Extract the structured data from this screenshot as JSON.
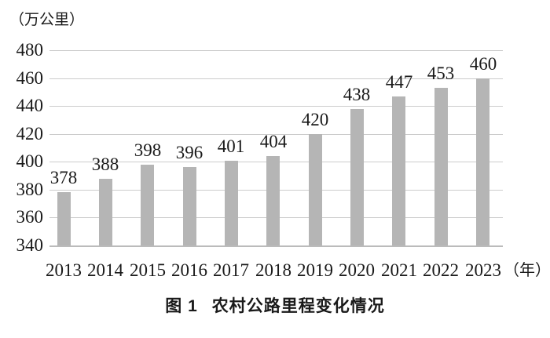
{
  "chart_data": {
    "type": "bar",
    "title": "图 1 农村公路里程变化情况",
    "unit_label": "（万公里）",
    "x_unit_label": "（年）",
    "categories": [
      "2013",
      "2014",
      "2015",
      "2016",
      "2017",
      "2018",
      "2019",
      "2020",
      "2021",
      "2022",
      "2023"
    ],
    "values": [
      378,
      388,
      398,
      396,
      401,
      404,
      420,
      438,
      447,
      453,
      460
    ],
    "ylim": [
      340,
      480
    ],
    "ytick_step": 20,
    "yticks": [
      340,
      360,
      380,
      400,
      420,
      440,
      460,
      480
    ],
    "grid": "horizontal",
    "legend": "none",
    "data_labels": "above-bars",
    "colors": {
      "background": "#ffffff",
      "bar": "#b5b5b5",
      "gridline": "#cccccc",
      "baseline": "#bbbbbb",
      "text": "#1a1a1a"
    }
  },
  "caption": {
    "label": "图 1",
    "text": "农村公路里程变化情况"
  }
}
